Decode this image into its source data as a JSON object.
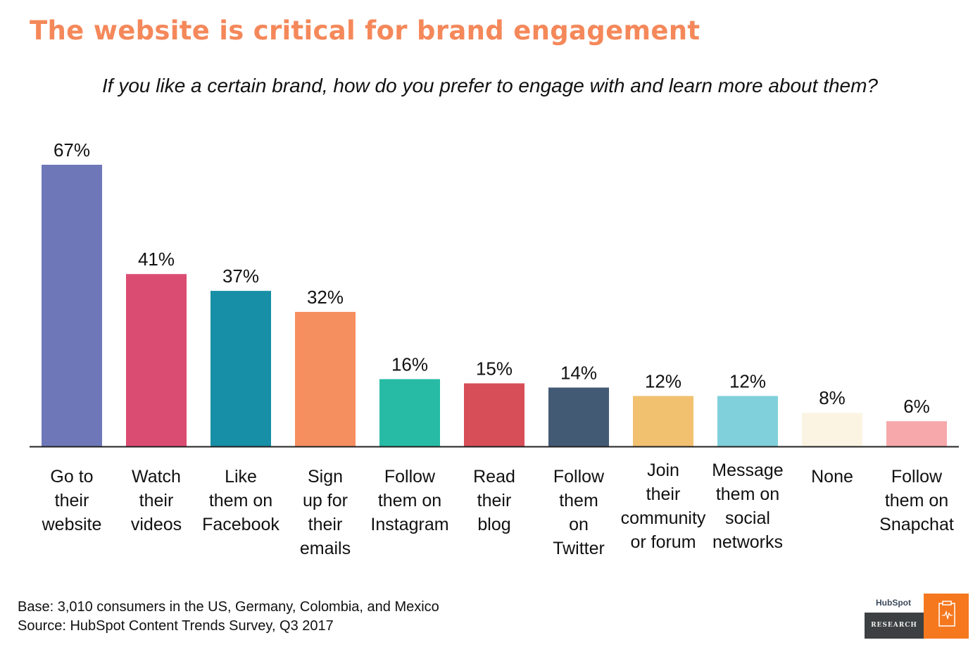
{
  "title": "The website is critical for brand engagement",
  "subtitle": "If you like a certain brand, how do you prefer to engage with and learn more about them?",
  "footer": {
    "base": "Base: 3,010 consumers in the US, Germany, Colombia, and Mexico",
    "source": "Source: HubSpot Content Trends Survey, Q3 2017"
  },
  "logo": {
    "brand": "HubSpot",
    "label": "RESEARCH"
  },
  "chart_data": {
    "type": "bar",
    "title": "The website is critical for brand engagement",
    "subtitle": "If you like a certain brand, how do you prefer to engage with and learn more about them?",
    "categories": [
      [
        "Go to",
        "their",
        "website"
      ],
      [
        "Watch",
        "their",
        "videos"
      ],
      [
        "Like",
        "them on",
        "Facebook"
      ],
      [
        "Sign",
        "up for",
        "their",
        "emails"
      ],
      [
        "Follow",
        "them on",
        "Instagram"
      ],
      [
        "Read",
        "their",
        "blog"
      ],
      [
        "Follow",
        "them",
        "on",
        "Twitter"
      ],
      [
        "Join",
        "their",
        "community",
        "or forum"
      ],
      [
        "Message",
        "them on",
        "social",
        "networks"
      ],
      [
        "None"
      ],
      [
        "Follow",
        "them on",
        "Snapchat"
      ]
    ],
    "values": [
      67,
      41,
      37,
      32,
      16,
      15,
      14,
      12,
      12,
      8,
      6
    ],
    "labels": [
      "67%",
      "41%",
      "37%",
      "32%",
      "16%",
      "15%",
      "14%",
      "12%",
      "12%",
      "8%",
      "6%"
    ],
    "colors": [
      "#6e78b8",
      "#db4c72",
      "#178fa6",
      "#f68f5f",
      "#27bba5",
      "#d74e58",
      "#435a75",
      "#f2c170",
      "#80d0dc",
      "#fcf4e3",
      "#f7a8ab"
    ],
    "ylim": [
      0,
      67
    ],
    "grid": false,
    "unit": "%"
  }
}
